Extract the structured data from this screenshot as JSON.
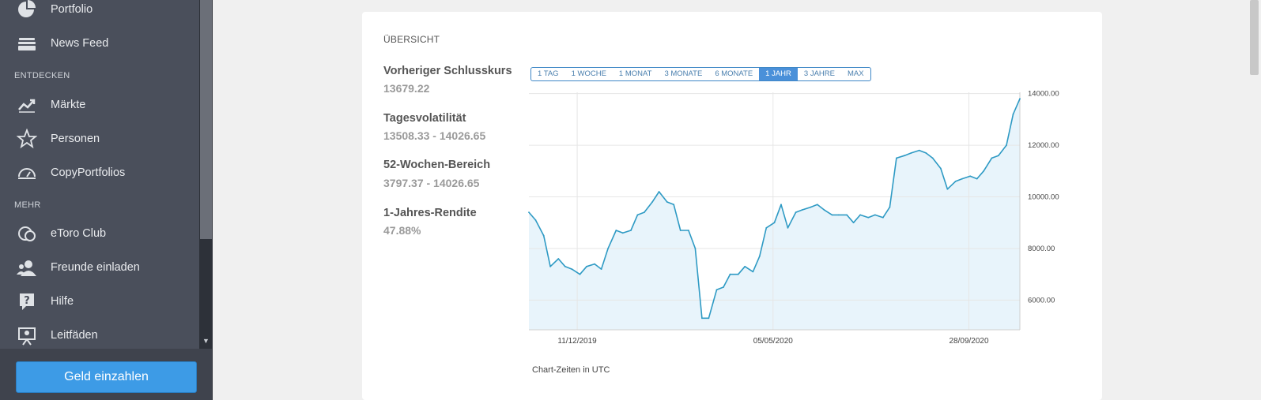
{
  "sidebar": {
    "items_top": [
      {
        "label": "Portfolio",
        "icon": "pie-chart-icon"
      },
      {
        "label": "News Feed",
        "icon": "news-feed-icon"
      }
    ],
    "section_discover": "ENTDECKEN",
    "items_discover": [
      {
        "label": "Märkte",
        "icon": "trend-icon"
      },
      {
        "label": "Personen",
        "icon": "star-icon"
      },
      {
        "label": "CopyPortfolios",
        "icon": "copyportfolio-icon"
      }
    ],
    "section_more": "MEHR",
    "items_more": [
      {
        "label": "eToro Club",
        "icon": "club-icon"
      },
      {
        "label": "Freunde einladen",
        "icon": "invite-friends-icon"
      },
      {
        "label": "Hilfe",
        "icon": "help-icon"
      },
      {
        "label": "Leitfäden",
        "icon": "guides-icon"
      }
    ],
    "deposit_label": "Geld einzahlen"
  },
  "overview": {
    "title": "ÜBERSICHT",
    "stats": [
      {
        "label": "Vorheriger Schlusskurs",
        "value": "13679.22"
      },
      {
        "label": "Tagesvolatilität",
        "value": "13508.33 - 14026.65"
      },
      {
        "label": "52-Wochen-Bereich",
        "value": "3797.37 - 14026.65"
      },
      {
        "label": "1-Jahres-Rendite",
        "value": "47.88%"
      }
    ],
    "ranges": [
      "1 TAG",
      "1 WOCHE",
      "1 MONAT",
      "3 MONATE",
      "6 MONATE",
      "1 JAHR",
      "3 JAHRE",
      "MAX"
    ],
    "active_range": "1 JAHR",
    "chart_note": "Chart-Zeiten in UTC"
  },
  "colors": {
    "line": "#2e9ac4",
    "fill": "#e8f4fb",
    "accent": "#4a90d9"
  },
  "chart_data": {
    "type": "area",
    "x_start": "2019-11-05",
    "x_end": "2020-11-05",
    "x_tick_dates": [
      "2019-12-11",
      "2020-05-05",
      "2020-09-28"
    ],
    "x_tick_labels": [
      "11/12/2019",
      "05/05/2020",
      "28/09/2020"
    ],
    "y_ticks": [
      6000,
      8000,
      10000,
      12000,
      14000
    ],
    "y_tick_labels": [
      "6000.00",
      "8000.00",
      "10000.00",
      "12000.00",
      "14000.00"
    ],
    "ylim": [
      4850,
      14050
    ],
    "grid": true,
    "series": [
      {
        "x": [
          "2019-11-05",
          "2019-11-10",
          "2019-11-16",
          "2019-11-21",
          "2019-11-27",
          "2019-12-02",
          "2019-12-07",
          "2019-12-13",
          "2019-12-18",
          "2019-12-24",
          "2019-12-29",
          "2020-01-03",
          "2020-01-09",
          "2020-01-14",
          "2020-01-20",
          "2020-01-25",
          "2020-01-30",
          "2020-02-05",
          "2020-02-10",
          "2020-02-16",
          "2020-02-21",
          "2020-02-26",
          "2020-03-03",
          "2020-03-08",
          "2020-03-13",
          "2020-03-18",
          "2020-03-24",
          "2020-03-29",
          "2020-04-03",
          "2020-04-09",
          "2020-04-14",
          "2020-04-20",
          "2020-04-25",
          "2020-04-30",
          "2020-05-06",
          "2020-05-11",
          "2020-05-16",
          "2020-05-22",
          "2020-05-27",
          "2020-06-02",
          "2020-06-07",
          "2020-06-12",
          "2020-06-18",
          "2020-06-23",
          "2020-06-29",
          "2020-07-04",
          "2020-07-09",
          "2020-07-15",
          "2020-07-20",
          "2020-07-26",
          "2020-07-31",
          "2020-08-05",
          "2020-08-11",
          "2020-08-16",
          "2020-08-22",
          "2020-08-27",
          "2020-09-01",
          "2020-09-07",
          "2020-09-12",
          "2020-09-18",
          "2020-09-23",
          "2020-09-29",
          "2020-10-04",
          "2020-10-09",
          "2020-10-15",
          "2020-10-20",
          "2020-10-26",
          "2020-10-31",
          "2020-11-05"
        ],
        "values": [
          9400,
          9100,
          8500,
          7300,
          7600,
          7300,
          7200,
          7000,
          7300,
          7400,
          7200,
          8000,
          8700,
          8600,
          8700,
          9300,
          9400,
          9800,
          10200,
          9800,
          9700,
          8700,
          8700,
          8000,
          5300,
          5300,
          6400,
          6500,
          7000,
          7000,
          7300,
          7100,
          7700,
          8800,
          9000,
          9700,
          8800,
          9400,
          9500,
          9600,
          9700,
          9500,
          9300,
          9300,
          9300,
          9000,
          9300,
          9200,
          9300,
          9200,
          9600,
          11500,
          11600,
          11700,
          11800,
          11700,
          11500,
          11100,
          10300,
          10600,
          10700,
          10800,
          10700,
          11000,
          11500,
          11600,
          12000,
          13200,
          13800
        ]
      }
    ]
  }
}
